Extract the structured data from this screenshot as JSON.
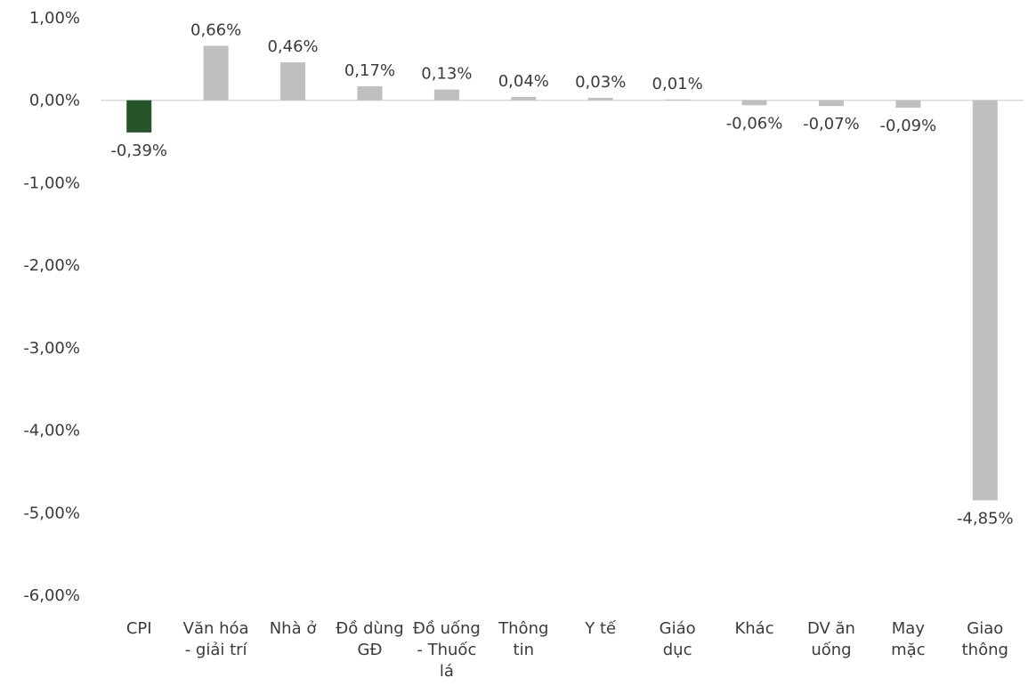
{
  "chart_data": {
    "type": "bar",
    "title": "",
    "xlabel": "",
    "ylabel": "",
    "ylim": [
      -6,
      1
    ],
    "y_ticks": [
      1,
      0,
      -1,
      -2,
      -3,
      -4,
      -5,
      -6
    ],
    "y_tick_labels": [
      "1,00%",
      "0,00%",
      "-1,00%",
      "-2,00%",
      "-3,00%",
      "-4,00%",
      "-5,00%",
      "-6,00%"
    ],
    "grid": false,
    "legend": "none",
    "categories": [
      [
        "CPI"
      ],
      [
        "Văn hóa",
        "- giải trí"
      ],
      [
        "Nhà ở"
      ],
      [
        "Đồ dùng",
        "GĐ"
      ],
      [
        "Đồ uống",
        "- Thuốc",
        "lá"
      ],
      [
        "Thông",
        "tin"
      ],
      [
        "Y tế"
      ],
      [
        "Giáo",
        "dục"
      ],
      [
        "Khác"
      ],
      [
        "DV ăn",
        "uống"
      ],
      [
        "May",
        "mặc"
      ],
      [
        "Giao",
        "thông"
      ]
    ],
    "values": [
      -0.39,
      0.66,
      0.46,
      0.17,
      0.13,
      0.04,
      0.03,
      0.01,
      -0.06,
      -0.07,
      -0.09,
      -4.85
    ],
    "data_labels": [
      "-0,39%",
      "0,66%",
      "0,46%",
      "0,17%",
      "0,13%",
      "0,04%",
      "0,03%",
      "0,01%",
      "-0,06%",
      "-0,07%",
      "-0,09%",
      "-4,85%"
    ],
    "colors": {
      "highlight": "#27552a",
      "default": "#bfbfbf",
      "zero_line": "#d9d9d9",
      "text": "#3b3b3b"
    },
    "highlight_index": 0
  }
}
